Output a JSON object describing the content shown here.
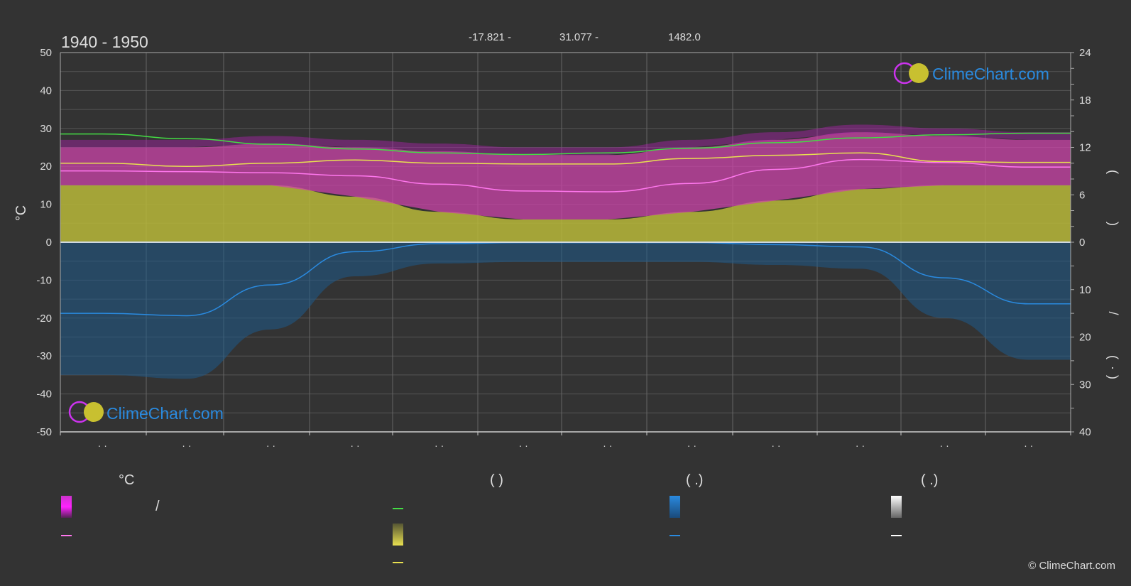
{
  "title": "1940 - 1950",
  "header_values": [
    "-17.821 -",
    "31.077 -",
    "1482.0"
  ],
  "logo_text": "ClimeChart.com",
  "copyright": "© ClimeChart.com",
  "chart_data": {
    "type": "area",
    "title": "1940 - 1950",
    "ylabel_left": "°C",
    "ylim_left": [
      -50,
      50
    ],
    "yticks_left": [
      -50,
      -40,
      -30,
      -20,
      -10,
      0,
      10,
      20,
      30,
      40,
      50
    ],
    "yticks_right_top": [
      0,
      6,
      12,
      18,
      24
    ],
    "yticks_right_bottom": [
      0,
      10,
      20,
      30,
      40
    ],
    "right_axis_top_marks": [
      "(",
      ")"
    ],
    "right_axis_bottom_marks": [
      "/",
      "(",
      "·",
      ")"
    ],
    "x_tick_labels": [
      "· ·",
      "· ·",
      "· ·",
      "· ·",
      "· ·",
      "· ·",
      "· ·",
      "· ·",
      "· ·",
      "· ·",
      "· ·",
      "· ·"
    ],
    "months": 12,
    "daylight_hours": [
      13.7,
      13.1,
      12.4,
      11.8,
      11.3,
      11.1,
      11.3,
      11.9,
      12.6,
      13.2,
      13.6,
      13.8
    ],
    "sunshine_hours": [
      10.0,
      9.6,
      10.0,
      10.4,
      10.0,
      9.9,
      9.9,
      10.6,
      11.0,
      11.3,
      10.2,
      10.1
    ],
    "sunshine_top": [
      25,
      25,
      24,
      24,
      24,
      23,
      23,
      24,
      25,
      26,
      25,
      25
    ],
    "sunshine_band_top": [
      15,
      15,
      15,
      12,
      8,
      6,
      6,
      8,
      11,
      14,
      15,
      15
    ],
    "temp_mean": [
      18.8,
      18.6,
      18.3,
      17.5,
      15.3,
      13.5,
      13.3,
      15.5,
      19.2,
      21.8,
      21.0,
      19.8
    ],
    "temp_max_band": [
      25,
      25,
      26,
      25,
      24,
      23,
      23,
      25,
      27,
      29,
      28,
      27
    ],
    "precip_mm": [
      15.0,
      15.5,
      9.0,
      2.0,
      0.3,
      0.1,
      0.1,
      0.1,
      0.5,
      1.0,
      7.5,
      13.0
    ],
    "legend": {
      "temp_header": "°C",
      "temp_item1_sep": "/",
      "sun_header": "(          )",
      "rain_header": "(   .)",
      "snow_header": "(   .)"
    },
    "colors": {
      "daylight": "#44dd44",
      "sunshine": "#e8e050",
      "sunshine_fill": "#b8b83a",
      "temp_line": "#ff77ee",
      "temp_fill": "#cc44aa",
      "precip": "#2a8adf",
      "snow": "#ffffff"
    }
  }
}
